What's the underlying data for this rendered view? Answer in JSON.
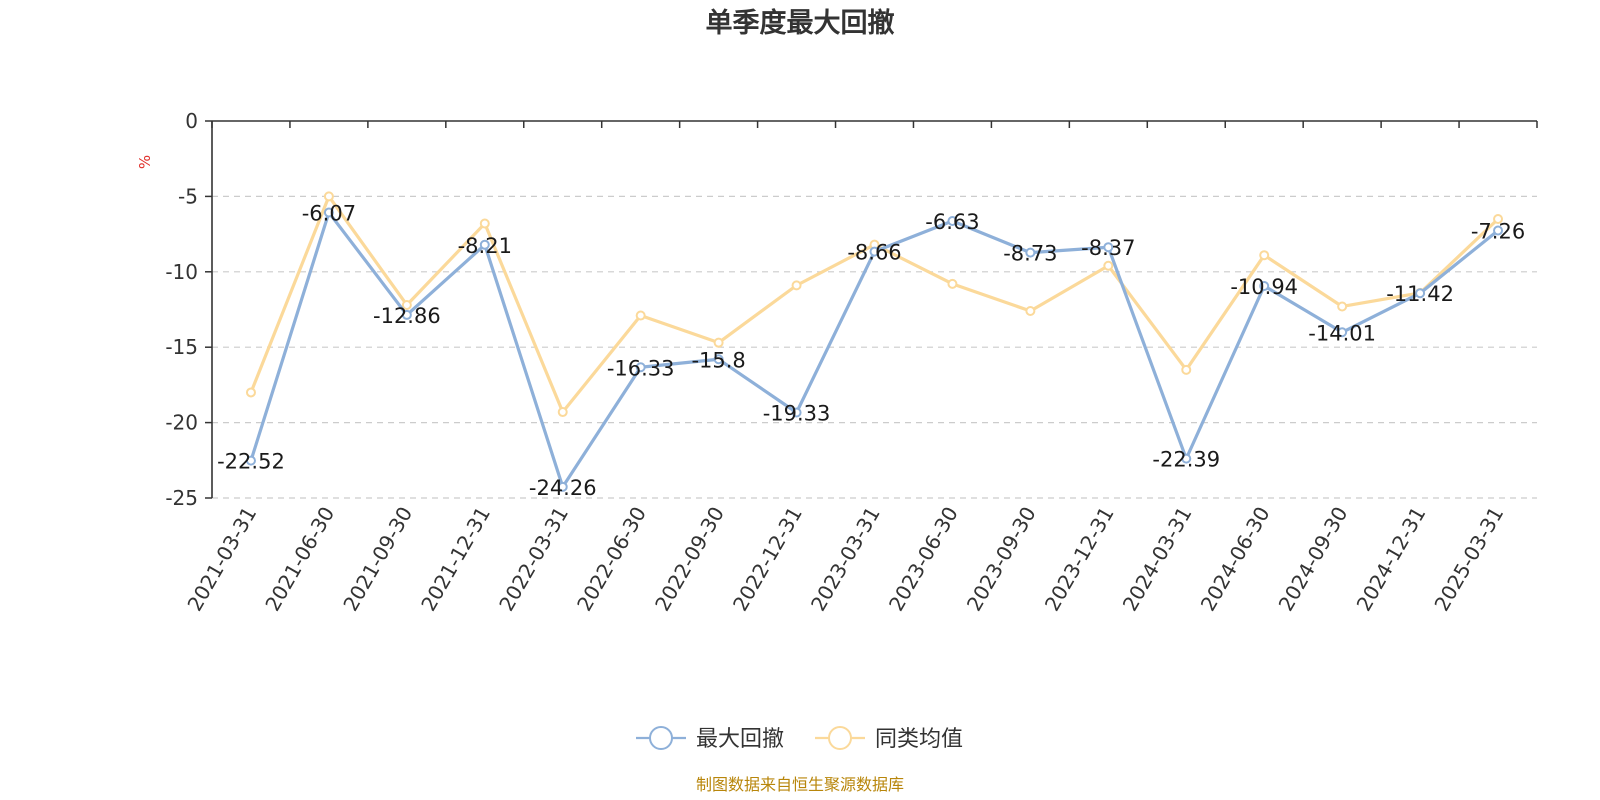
{
  "chart_data": {
    "type": "line",
    "title": "单季度最大回撤",
    "ylabel": "%",
    "xlabel": "",
    "ylim": [
      -25,
      0
    ],
    "yticks": [
      0,
      -5,
      -10,
      -15,
      -20,
      -25
    ],
    "grid": true,
    "legend_position": "bottom-center",
    "categories": [
      "2021-03-31",
      "2021-06-30",
      "2021-09-30",
      "2021-12-31",
      "2022-03-31",
      "2022-06-30",
      "2022-09-30",
      "2022-12-31",
      "2023-03-31",
      "2023-06-30",
      "2023-09-30",
      "2023-12-31",
      "2024-03-31",
      "2024-06-30",
      "2024-09-30",
      "2024-12-31",
      "2025-03-31"
    ],
    "series": [
      {
        "name": "最大回撤",
        "color": "#8eb0d9",
        "values": [
          -22.52,
          -6.07,
          -12.86,
          -8.21,
          -24.26,
          -16.33,
          -15.8,
          -19.33,
          -8.66,
          -6.63,
          -8.73,
          -8.37,
          -22.39,
          -10.94,
          -14.01,
          -11.42,
          -7.26
        ],
        "show_labels": true
      },
      {
        "name": "同类均值",
        "color": "#fbd99a",
        "values": [
          -18.0,
          -5.0,
          -12.2,
          -6.8,
          -19.3,
          -12.9,
          -14.7,
          -10.9,
          -8.2,
          -10.8,
          -12.6,
          -9.6,
          -16.5,
          -8.9,
          -12.3,
          -11.4,
          -6.5
        ],
        "show_labels": false
      }
    ],
    "source_note": "制图数据来自恒生聚源数据库"
  }
}
